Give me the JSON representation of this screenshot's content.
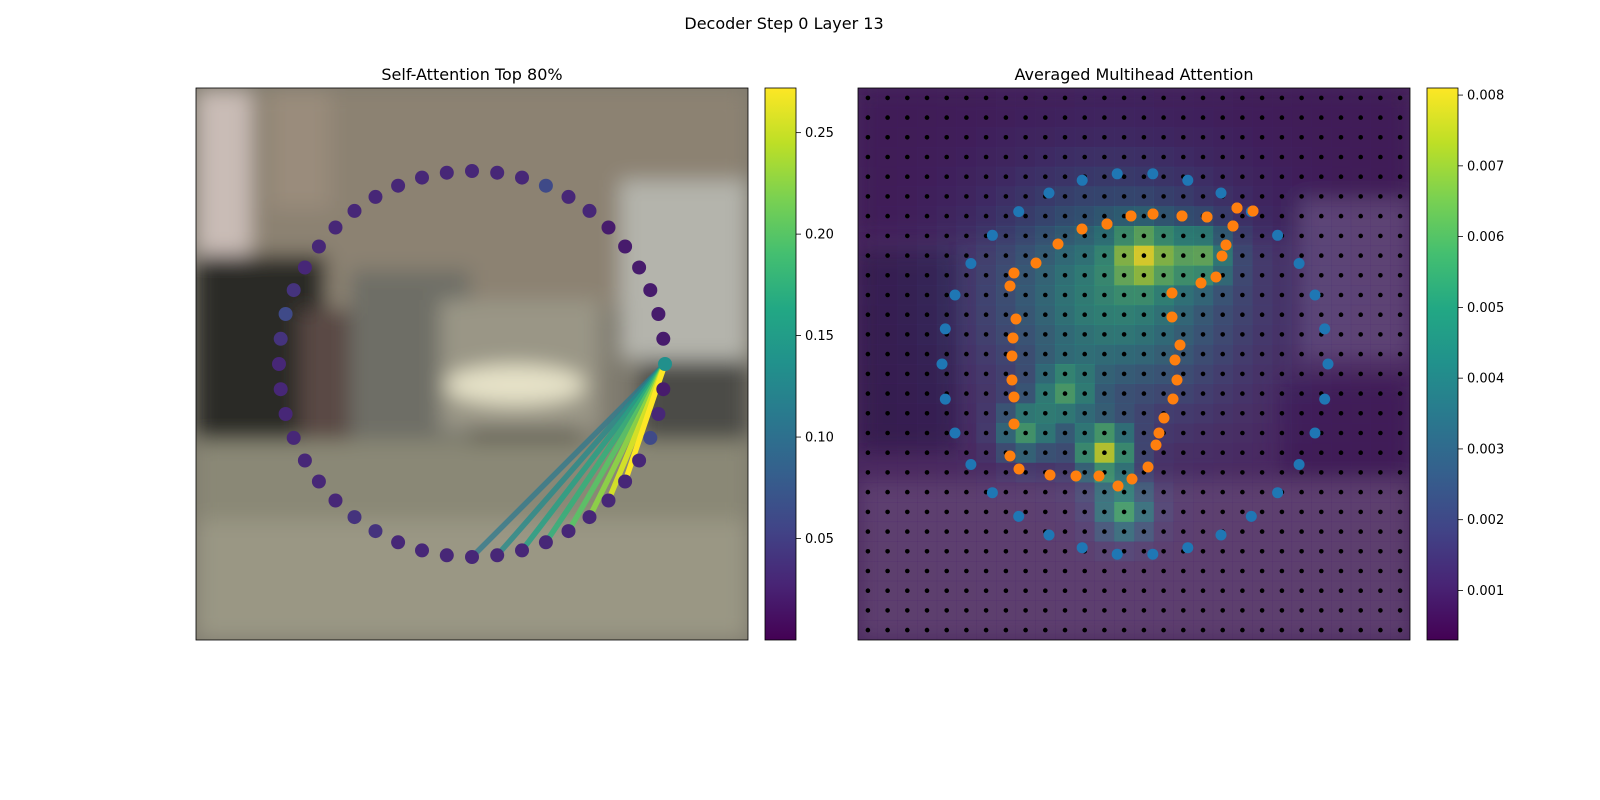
{
  "figure": {
    "suptitle": "Decoder Step 0 Layer 13"
  },
  "chart_data": [
    {
      "type": "scatter",
      "panel": "left",
      "title": "Self-Attention Top 80%",
      "description": "Contour of 48 points on a circle over a blurred street image; the query point (index 0, right) connects with lines to the most-attended points. Point and line color = attention weight.",
      "colorbar": {
        "cmap": "viridis",
        "vmin": 0.0,
        "vmax": 0.272,
        "ticks": [
          0.05,
          0.1,
          0.15,
          0.2,
          0.25
        ],
        "tick_labels": [
          "0.05",
          "0.10",
          "0.15",
          "0.20",
          "0.25"
        ]
      },
      "query_index": 0,
      "query_value": 0.135,
      "point_values": [
        0.135,
        0.02,
        0.02,
        0.02,
        0.02,
        0.02,
        0.02,
        0.03,
        0.03,
        0.06,
        0.03,
        0.03,
        0.03,
        0.03,
        0.03,
        0.03,
        0.03,
        0.03,
        0.03,
        0.03,
        0.03,
        0.04,
        0.06,
        0.04,
        0.03,
        0.03,
        0.03,
        0.03,
        0.03,
        0.03,
        0.03,
        0.04,
        0.04,
        0.03,
        0.03,
        0.03,
        0.03,
        0.03,
        0.03,
        0.03,
        0.03,
        0.03,
        0.03,
        0.03,
        0.03,
        0.06,
        0.03,
        0.02
      ],
      "attention_lines": [
        {
          "to_index": 43,
          "value": 0.272
        },
        {
          "to_index": 42,
          "value": 0.255
        },
        {
          "to_index": 41,
          "value": 0.225
        },
        {
          "to_index": 40,
          "value": 0.2
        },
        {
          "to_index": 39,
          "value": 0.175
        },
        {
          "to_index": 38,
          "value": 0.155
        },
        {
          "to_index": 37,
          "value": 0.13
        },
        {
          "to_index": 36,
          "value": 0.11
        }
      ]
    },
    {
      "type": "heatmap",
      "panel": "right",
      "title": "Averaged Multihead Attention",
      "description": "Averaged attention heatmap over a 28x28 grid of reference points overlaid on the image, with blue outer contour points and orange predicted contour points.",
      "colorbar": {
        "cmap": "viridis",
        "vmin": 0.0003,
        "vmax": 0.0081,
        "ticks": [
          0.001,
          0.002,
          0.003,
          0.004,
          0.005,
          0.006,
          0.007,
          0.008
        ],
        "tick_labels": [
          "0.001",
          "0.002",
          "0.003",
          "0.004",
          "0.005",
          "0.006",
          "0.007",
          "0.008"
        ]
      },
      "grid_size": 28,
      "series": [
        {
          "color": "#1f77b4",
          "count": 34
        },
        {
          "color": "#ff7f0e",
          "count": 48
        },
        {
          "color": "#000000",
          "count": 784
        }
      ]
    }
  ],
  "colors": {
    "left_points": "#3b528b",
    "blue_series": "#1f77b4",
    "orange_series": "#ff7f0e",
    "grid_dots": "#000000"
  }
}
